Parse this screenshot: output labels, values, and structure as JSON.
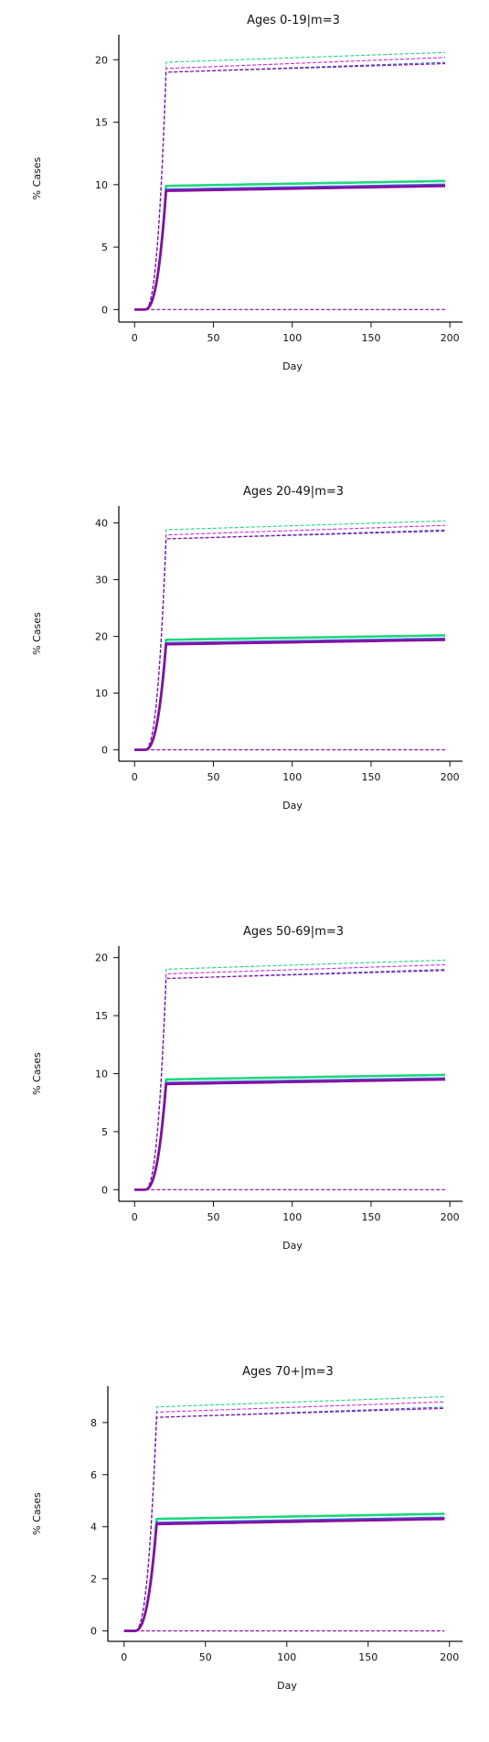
{
  "chart_data": [
    {
      "type": "line",
      "title": "Ages 0-19|m=3",
      "xlabel": "Day",
      "ylabel": "% Cases",
      "xlim": [
        -10,
        208
      ],
      "ylim": [
        -1,
        22
      ],
      "xticks": [
        0,
        50,
        100,
        150,
        200
      ],
      "yticks": [
        0,
        5,
        10,
        15,
        20
      ],
      "grid": false,
      "legend": "none",
      "series": [
        {
          "color": "#1fd67e",
          "dashed": false,
          "width": 2.6,
          "plateau": 9.9,
          "end": 10.3
        },
        {
          "color": "#3a62d6",
          "dashed": false,
          "width": 2.6,
          "plateau": 9.6,
          "end": 10.0
        },
        {
          "color": "#8a0a9e",
          "dashed": false,
          "width": 2.6,
          "plateau": 9.5,
          "end": 9.9
        },
        {
          "color": "#1fd67e",
          "dashed": true,
          "width": 1.1,
          "plateau": 19.8,
          "end": 20.6
        },
        {
          "color": "#d126d9",
          "dashed": true,
          "width": 1.1,
          "plateau": 19.3,
          "end": 20.2
        },
        {
          "color": "#3a62d6",
          "dashed": true,
          "width": 1.1,
          "plateau": 19.0,
          "end": 19.8
        },
        {
          "color": "#8a0a9e",
          "dashed": true,
          "width": 1.1,
          "plateau": 19.0,
          "end": 19.7
        },
        {
          "color": "#8a0a9e",
          "dashed": true,
          "width": 1.1,
          "plateau": 0,
          "end": 0
        }
      ]
    },
    {
      "type": "line",
      "title": "Ages 20-49|m=3",
      "xlabel": "Day",
      "ylabel": "% Cases",
      "xlim": [
        -10,
        208
      ],
      "ylim": [
        -2,
        43
      ],
      "xticks": [
        0,
        50,
        100,
        150,
        200
      ],
      "yticks": [
        0,
        10,
        20,
        30,
        40
      ],
      "grid": false,
      "legend": "none",
      "series": [
        {
          "color": "#1fd67e",
          "dashed": false,
          "width": 2.6,
          "plateau": 19.4,
          "end": 20.2
        },
        {
          "color": "#3a62d6",
          "dashed": false,
          "width": 2.6,
          "plateau": 18.8,
          "end": 19.6
        },
        {
          "color": "#8a0a9e",
          "dashed": false,
          "width": 2.6,
          "plateau": 18.6,
          "end": 19.4
        },
        {
          "color": "#1fd67e",
          "dashed": true,
          "width": 1.1,
          "plateau": 38.8,
          "end": 40.4
        },
        {
          "color": "#d126d9",
          "dashed": true,
          "width": 1.1,
          "plateau": 37.9,
          "end": 39.6
        },
        {
          "color": "#3a62d6",
          "dashed": true,
          "width": 1.1,
          "plateau": 37.2,
          "end": 38.8
        },
        {
          "color": "#8a0a9e",
          "dashed": true,
          "width": 1.1,
          "plateau": 37.2,
          "end": 38.6
        },
        {
          "color": "#8a0a9e",
          "dashed": true,
          "width": 1.1,
          "plateau": 0,
          "end": 0
        }
      ]
    },
    {
      "type": "line",
      "title": "Ages 50-69|m=3",
      "xlabel": "Day",
      "ylabel": "% Cases",
      "xlim": [
        -10,
        208
      ],
      "ylim": [
        -1,
        21
      ],
      "xticks": [
        0,
        50,
        100,
        150,
        200
      ],
      "yticks": [
        0,
        5,
        10,
        15,
        20
      ],
      "grid": false,
      "legend": "none",
      "series": [
        {
          "color": "#1fd67e",
          "dashed": false,
          "width": 2.6,
          "plateau": 9.5,
          "end": 9.9
        },
        {
          "color": "#3a62d6",
          "dashed": false,
          "width": 2.6,
          "plateau": 9.2,
          "end": 9.6
        },
        {
          "color": "#8a0a9e",
          "dashed": false,
          "width": 2.6,
          "plateau": 9.1,
          "end": 9.5
        },
        {
          "color": "#1fd67e",
          "dashed": true,
          "width": 1.1,
          "plateau": 19.0,
          "end": 19.8
        },
        {
          "color": "#d126d9",
          "dashed": true,
          "width": 1.1,
          "plateau": 18.6,
          "end": 19.4
        },
        {
          "color": "#3a62d6",
          "dashed": true,
          "width": 1.1,
          "plateau": 18.2,
          "end": 19.0
        },
        {
          "color": "#8a0a9e",
          "dashed": true,
          "width": 1.1,
          "plateau": 18.2,
          "end": 18.9
        },
        {
          "color": "#8a0a9e",
          "dashed": true,
          "width": 1.1,
          "plateau": 0,
          "end": 0
        }
      ]
    },
    {
      "type": "line",
      "title": "Ages 70+|m=3",
      "xlabel": "Day",
      "ylabel": "% Cases",
      "xlim": [
        -10,
        208
      ],
      "ylim": [
        -0.4,
        9.4
      ],
      "xticks": [
        0,
        50,
        100,
        150,
        200
      ],
      "yticks": [
        0,
        2,
        4,
        6,
        8
      ],
      "grid": false,
      "legend": "none",
      "series": [
        {
          "color": "#1fd67e",
          "dashed": false,
          "width": 2.6,
          "plateau": 4.3,
          "end": 4.5
        },
        {
          "color": "#3a62d6",
          "dashed": false,
          "width": 2.6,
          "plateau": 4.15,
          "end": 4.35
        },
        {
          "color": "#8a0a9e",
          "dashed": false,
          "width": 2.6,
          "plateau": 4.1,
          "end": 4.3
        },
        {
          "color": "#1fd67e",
          "dashed": true,
          "width": 1.1,
          "plateau": 8.6,
          "end": 9.0
        },
        {
          "color": "#d126d9",
          "dashed": true,
          "width": 1.1,
          "plateau": 8.4,
          "end": 8.8
        },
        {
          "color": "#3a62d6",
          "dashed": true,
          "width": 1.1,
          "plateau": 8.2,
          "end": 8.6
        },
        {
          "color": "#8a0a9e",
          "dashed": true,
          "width": 1.1,
          "plateau": 8.2,
          "end": 8.55
        },
        {
          "color": "#8a0a9e",
          "dashed": true,
          "width": 1.1,
          "plateau": 0,
          "end": 0
        }
      ]
    }
  ]
}
